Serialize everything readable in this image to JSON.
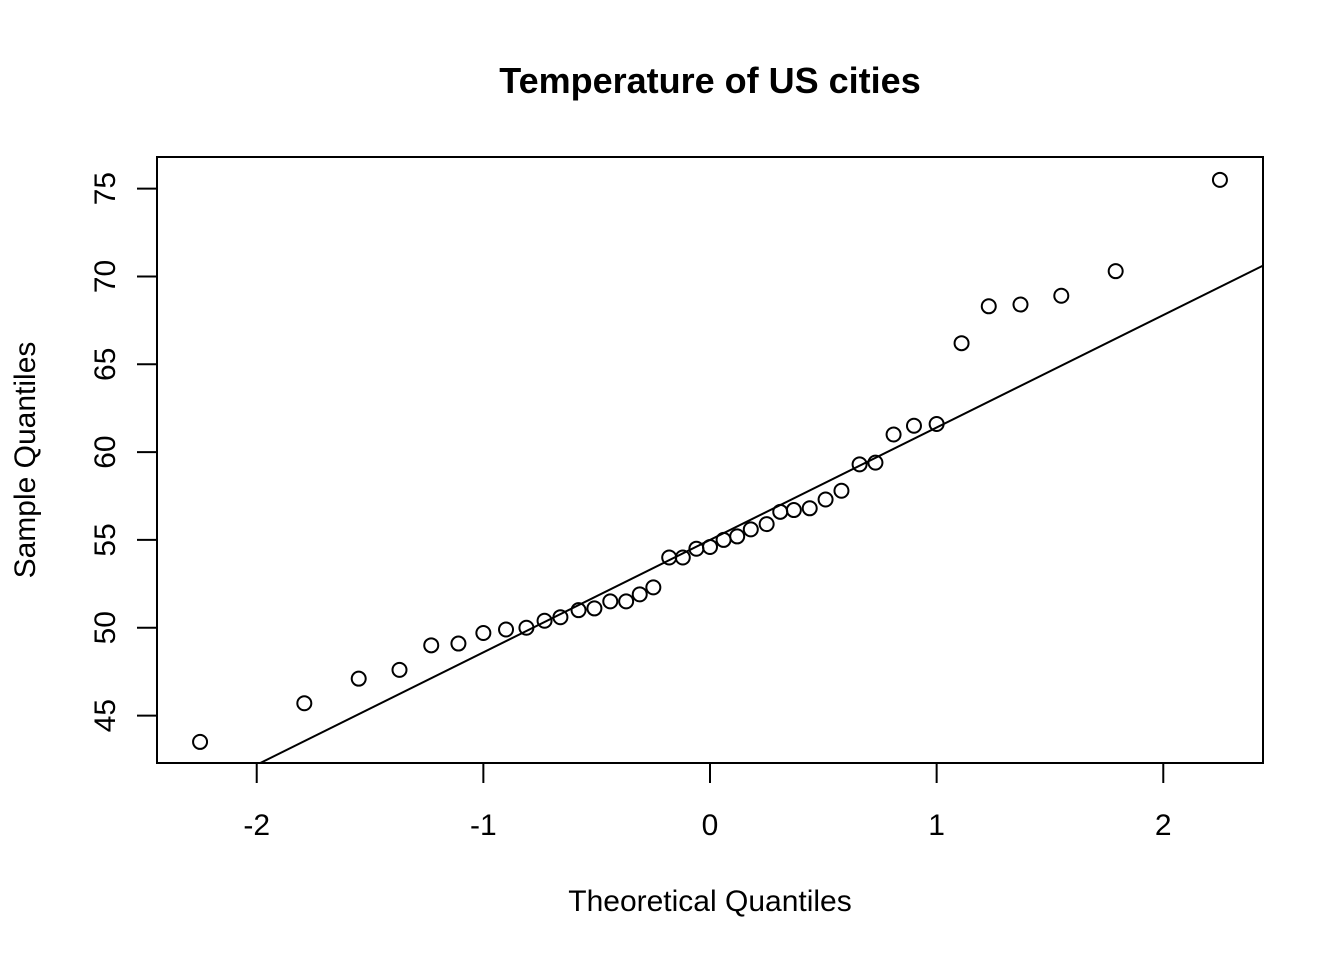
{
  "chart_data": {
    "type": "scatter",
    "title": "Temperature of US cities",
    "xlabel": "Theoretical Quantiles",
    "ylabel": "Sample Quantiles",
    "xlim": [
      -2.44,
      2.44
    ],
    "ylim": [
      42.3,
      76.8
    ],
    "x_ticks": [
      -2,
      -1,
      0,
      1,
      2
    ],
    "x_tick_labels": [
      "-2",
      "-1",
      "0",
      "1",
      "2"
    ],
    "y_ticks": [
      45,
      50,
      55,
      60,
      65,
      70,
      75
    ],
    "y_tick_labels": [
      "45",
      "50",
      "55",
      "60",
      "65",
      "70",
      "75"
    ],
    "grid": false,
    "legend": "none",
    "reference_line": {
      "intercept": 55.0,
      "slope": 6.4
    },
    "points": {
      "x": [
        -2.25,
        -1.79,
        -1.55,
        -1.37,
        -1.23,
        -1.11,
        -1.0,
        -0.9,
        -0.81,
        -0.73,
        -0.66,
        -0.58,
        -0.51,
        -0.44,
        -0.37,
        -0.31,
        -0.25,
        -0.18,
        -0.12,
        -0.06,
        0.0,
        0.06,
        0.12,
        0.18,
        0.25,
        0.31,
        0.37,
        0.44,
        0.51,
        0.58,
        0.66,
        0.73,
        0.81,
        0.9,
        1.0,
        1.11,
        1.23,
        1.37,
        1.55,
        1.79,
        2.25
      ],
      "y": [
        43.5,
        45.7,
        47.1,
        47.6,
        49.0,
        49.1,
        49.7,
        49.9,
        50.0,
        50.4,
        50.6,
        51.0,
        51.1,
        51.5,
        51.5,
        51.9,
        52.3,
        54.0,
        54.0,
        54.5,
        54.6,
        55.0,
        55.2,
        55.6,
        55.9,
        56.6,
        56.7,
        56.8,
        57.3,
        57.8,
        59.3,
        59.4,
        61.0,
        61.5,
        61.6,
        66.2,
        68.3,
        68.4,
        68.9,
        70.3,
        75.5
      ]
    }
  }
}
